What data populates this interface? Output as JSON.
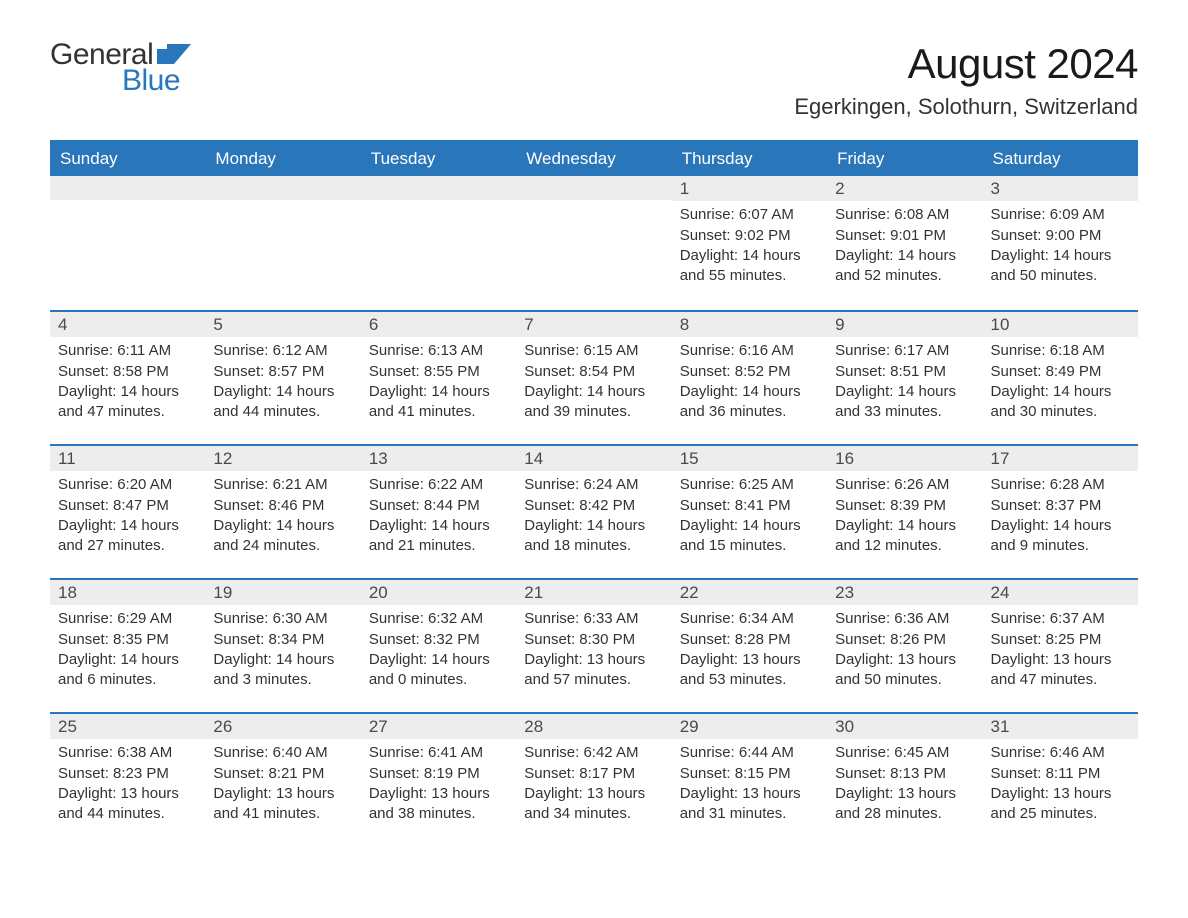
{
  "brand": {
    "general": "General",
    "blue": "Blue",
    "flag_color": "#2a76bb"
  },
  "header": {
    "title": "August 2024",
    "location": "Egerkingen, Solothurn, Switzerland"
  },
  "colors": {
    "header_bg": "#2a76bb",
    "header_text": "#ffffff",
    "row_border": "#2a76bb",
    "daynum_bg": "#ededed",
    "body_text": "#333333",
    "page_bg": "#ffffff"
  },
  "typography": {
    "month_title_fontsize": 42,
    "location_fontsize": 22,
    "weekday_fontsize": 17,
    "daynum_fontsize": 17,
    "body_fontsize": 15
  },
  "calendar": {
    "type": "table",
    "weekdays": [
      "Sunday",
      "Monday",
      "Tuesday",
      "Wednesday",
      "Thursday",
      "Friday",
      "Saturday"
    ],
    "weeks": [
      [
        {
          "day": "",
          "sunrise": "",
          "sunset": "",
          "daylight": ""
        },
        {
          "day": "",
          "sunrise": "",
          "sunset": "",
          "daylight": ""
        },
        {
          "day": "",
          "sunrise": "",
          "sunset": "",
          "daylight": ""
        },
        {
          "day": "",
          "sunrise": "",
          "sunset": "",
          "daylight": ""
        },
        {
          "day": "1",
          "sunrise": "Sunrise: 6:07 AM",
          "sunset": "Sunset: 9:02 PM",
          "daylight": "Daylight: 14 hours and 55 minutes."
        },
        {
          "day": "2",
          "sunrise": "Sunrise: 6:08 AM",
          "sunset": "Sunset: 9:01 PM",
          "daylight": "Daylight: 14 hours and 52 minutes."
        },
        {
          "day": "3",
          "sunrise": "Sunrise: 6:09 AM",
          "sunset": "Sunset: 9:00 PM",
          "daylight": "Daylight: 14 hours and 50 minutes."
        }
      ],
      [
        {
          "day": "4",
          "sunrise": "Sunrise: 6:11 AM",
          "sunset": "Sunset: 8:58 PM",
          "daylight": "Daylight: 14 hours and 47 minutes."
        },
        {
          "day": "5",
          "sunrise": "Sunrise: 6:12 AM",
          "sunset": "Sunset: 8:57 PM",
          "daylight": "Daylight: 14 hours and 44 minutes."
        },
        {
          "day": "6",
          "sunrise": "Sunrise: 6:13 AM",
          "sunset": "Sunset: 8:55 PM",
          "daylight": "Daylight: 14 hours and 41 minutes."
        },
        {
          "day": "7",
          "sunrise": "Sunrise: 6:15 AM",
          "sunset": "Sunset: 8:54 PM",
          "daylight": "Daylight: 14 hours and 39 minutes."
        },
        {
          "day": "8",
          "sunrise": "Sunrise: 6:16 AM",
          "sunset": "Sunset: 8:52 PM",
          "daylight": "Daylight: 14 hours and 36 minutes."
        },
        {
          "day": "9",
          "sunrise": "Sunrise: 6:17 AM",
          "sunset": "Sunset: 8:51 PM",
          "daylight": "Daylight: 14 hours and 33 minutes."
        },
        {
          "day": "10",
          "sunrise": "Sunrise: 6:18 AM",
          "sunset": "Sunset: 8:49 PM",
          "daylight": "Daylight: 14 hours and 30 minutes."
        }
      ],
      [
        {
          "day": "11",
          "sunrise": "Sunrise: 6:20 AM",
          "sunset": "Sunset: 8:47 PM",
          "daylight": "Daylight: 14 hours and 27 minutes."
        },
        {
          "day": "12",
          "sunrise": "Sunrise: 6:21 AM",
          "sunset": "Sunset: 8:46 PM",
          "daylight": "Daylight: 14 hours and 24 minutes."
        },
        {
          "day": "13",
          "sunrise": "Sunrise: 6:22 AM",
          "sunset": "Sunset: 8:44 PM",
          "daylight": "Daylight: 14 hours and 21 minutes."
        },
        {
          "day": "14",
          "sunrise": "Sunrise: 6:24 AM",
          "sunset": "Sunset: 8:42 PM",
          "daylight": "Daylight: 14 hours and 18 minutes."
        },
        {
          "day": "15",
          "sunrise": "Sunrise: 6:25 AM",
          "sunset": "Sunset: 8:41 PM",
          "daylight": "Daylight: 14 hours and 15 minutes."
        },
        {
          "day": "16",
          "sunrise": "Sunrise: 6:26 AM",
          "sunset": "Sunset: 8:39 PM",
          "daylight": "Daylight: 14 hours and 12 minutes."
        },
        {
          "day": "17",
          "sunrise": "Sunrise: 6:28 AM",
          "sunset": "Sunset: 8:37 PM",
          "daylight": "Daylight: 14 hours and 9 minutes."
        }
      ],
      [
        {
          "day": "18",
          "sunrise": "Sunrise: 6:29 AM",
          "sunset": "Sunset: 8:35 PM",
          "daylight": "Daylight: 14 hours and 6 minutes."
        },
        {
          "day": "19",
          "sunrise": "Sunrise: 6:30 AM",
          "sunset": "Sunset: 8:34 PM",
          "daylight": "Daylight: 14 hours and 3 minutes."
        },
        {
          "day": "20",
          "sunrise": "Sunrise: 6:32 AM",
          "sunset": "Sunset: 8:32 PM",
          "daylight": "Daylight: 14 hours and 0 minutes."
        },
        {
          "day": "21",
          "sunrise": "Sunrise: 6:33 AM",
          "sunset": "Sunset: 8:30 PM",
          "daylight": "Daylight: 13 hours and 57 minutes."
        },
        {
          "day": "22",
          "sunrise": "Sunrise: 6:34 AM",
          "sunset": "Sunset: 8:28 PM",
          "daylight": "Daylight: 13 hours and 53 minutes."
        },
        {
          "day": "23",
          "sunrise": "Sunrise: 6:36 AM",
          "sunset": "Sunset: 8:26 PM",
          "daylight": "Daylight: 13 hours and 50 minutes."
        },
        {
          "day": "24",
          "sunrise": "Sunrise: 6:37 AM",
          "sunset": "Sunset: 8:25 PM",
          "daylight": "Daylight: 13 hours and 47 minutes."
        }
      ],
      [
        {
          "day": "25",
          "sunrise": "Sunrise: 6:38 AM",
          "sunset": "Sunset: 8:23 PM",
          "daylight": "Daylight: 13 hours and 44 minutes."
        },
        {
          "day": "26",
          "sunrise": "Sunrise: 6:40 AM",
          "sunset": "Sunset: 8:21 PM",
          "daylight": "Daylight: 13 hours and 41 minutes."
        },
        {
          "day": "27",
          "sunrise": "Sunrise: 6:41 AM",
          "sunset": "Sunset: 8:19 PM",
          "daylight": "Daylight: 13 hours and 38 minutes."
        },
        {
          "day": "28",
          "sunrise": "Sunrise: 6:42 AM",
          "sunset": "Sunset: 8:17 PM",
          "daylight": "Daylight: 13 hours and 34 minutes."
        },
        {
          "day": "29",
          "sunrise": "Sunrise: 6:44 AM",
          "sunset": "Sunset: 8:15 PM",
          "daylight": "Daylight: 13 hours and 31 minutes."
        },
        {
          "day": "30",
          "sunrise": "Sunrise: 6:45 AM",
          "sunset": "Sunset: 8:13 PM",
          "daylight": "Daylight: 13 hours and 28 minutes."
        },
        {
          "day": "31",
          "sunrise": "Sunrise: 6:46 AM",
          "sunset": "Sunset: 8:11 PM",
          "daylight": "Daylight: 13 hours and 25 minutes."
        }
      ]
    ]
  }
}
